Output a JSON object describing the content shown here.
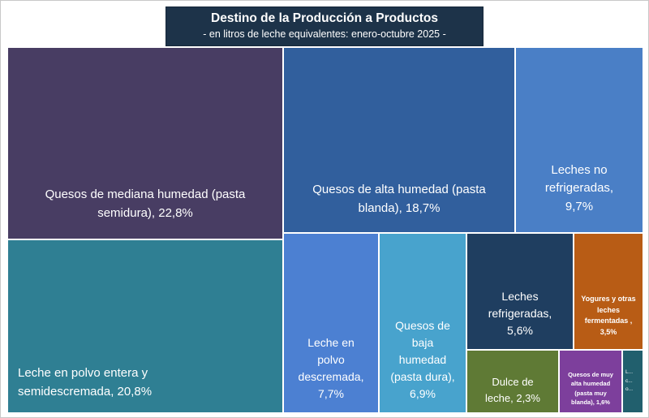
{
  "chart_data": {
    "type": "treemap",
    "title": "Destino de la Producción a Productos",
    "subtitle": "- en litros de leche equivalentes: enero-octubre 2025 -",
    "value_format": "percent with comma decimal separator",
    "legend": "none",
    "items": [
      {
        "category": "Quesos de mediana humedad (pasta semidura)",
        "value_pct": 22.8,
        "label": "Quesos de mediana humedad (pasta semidura), 22,8%",
        "color": "#483d63"
      },
      {
        "category": "Leche en polvo entera y semidescremada",
        "value_pct": 20.8,
        "label": "Leche en polvo entera y semidescremada, 20,8%",
        "color": "#2f7f93"
      },
      {
        "category": "Quesos de alta humedad (pasta blanda)",
        "value_pct": 18.7,
        "label": "Quesos de alta humedad (pasta blanda), 18,7%",
        "color": "#315f9d"
      },
      {
        "category": "Leches no refrigeradas",
        "value_pct": 9.7,
        "label": "Leches no refrigeradas, 9,7%",
        "color": "#4a7fc6"
      },
      {
        "category": "Leche en polvo descremada",
        "value_pct": 7.7,
        "label": "Leche en polvo descremada, 7,7%",
        "color": "#4c80d2"
      },
      {
        "category": "Quesos de baja humedad (pasta dura)",
        "value_pct": 6.9,
        "label": "Quesos de baja humedad (pasta dura), 6,9%",
        "color": "#48a3cd"
      },
      {
        "category": "Leches refrigeradas",
        "value_pct": 5.6,
        "label": "Leches refrigeradas, 5,6%",
        "color": "#1f3e60"
      },
      {
        "category": "Yogures y otras leches fermentadas",
        "value_pct": 3.5,
        "label": "Yogures y otras leches fermentadas , 3,5%",
        "color": "#b85c15"
      },
      {
        "category": "Dulce de leche",
        "value_pct": 2.3,
        "label": "Dulce de leche, 2,3%",
        "color": "#5f7a35"
      },
      {
        "category": "Quesos de muy alta humedad (pasta muy blanda)",
        "value_pct": 1.6,
        "label": "Quesos de muy alta humedad (pasta muy blanda), 1,6%",
        "color": "#7d3f9c"
      },
      {
        "category": "(label truncated)",
        "label": "L... c... o...",
        "label_truncated": true,
        "color": "#215f6d"
      }
    ]
  }
}
